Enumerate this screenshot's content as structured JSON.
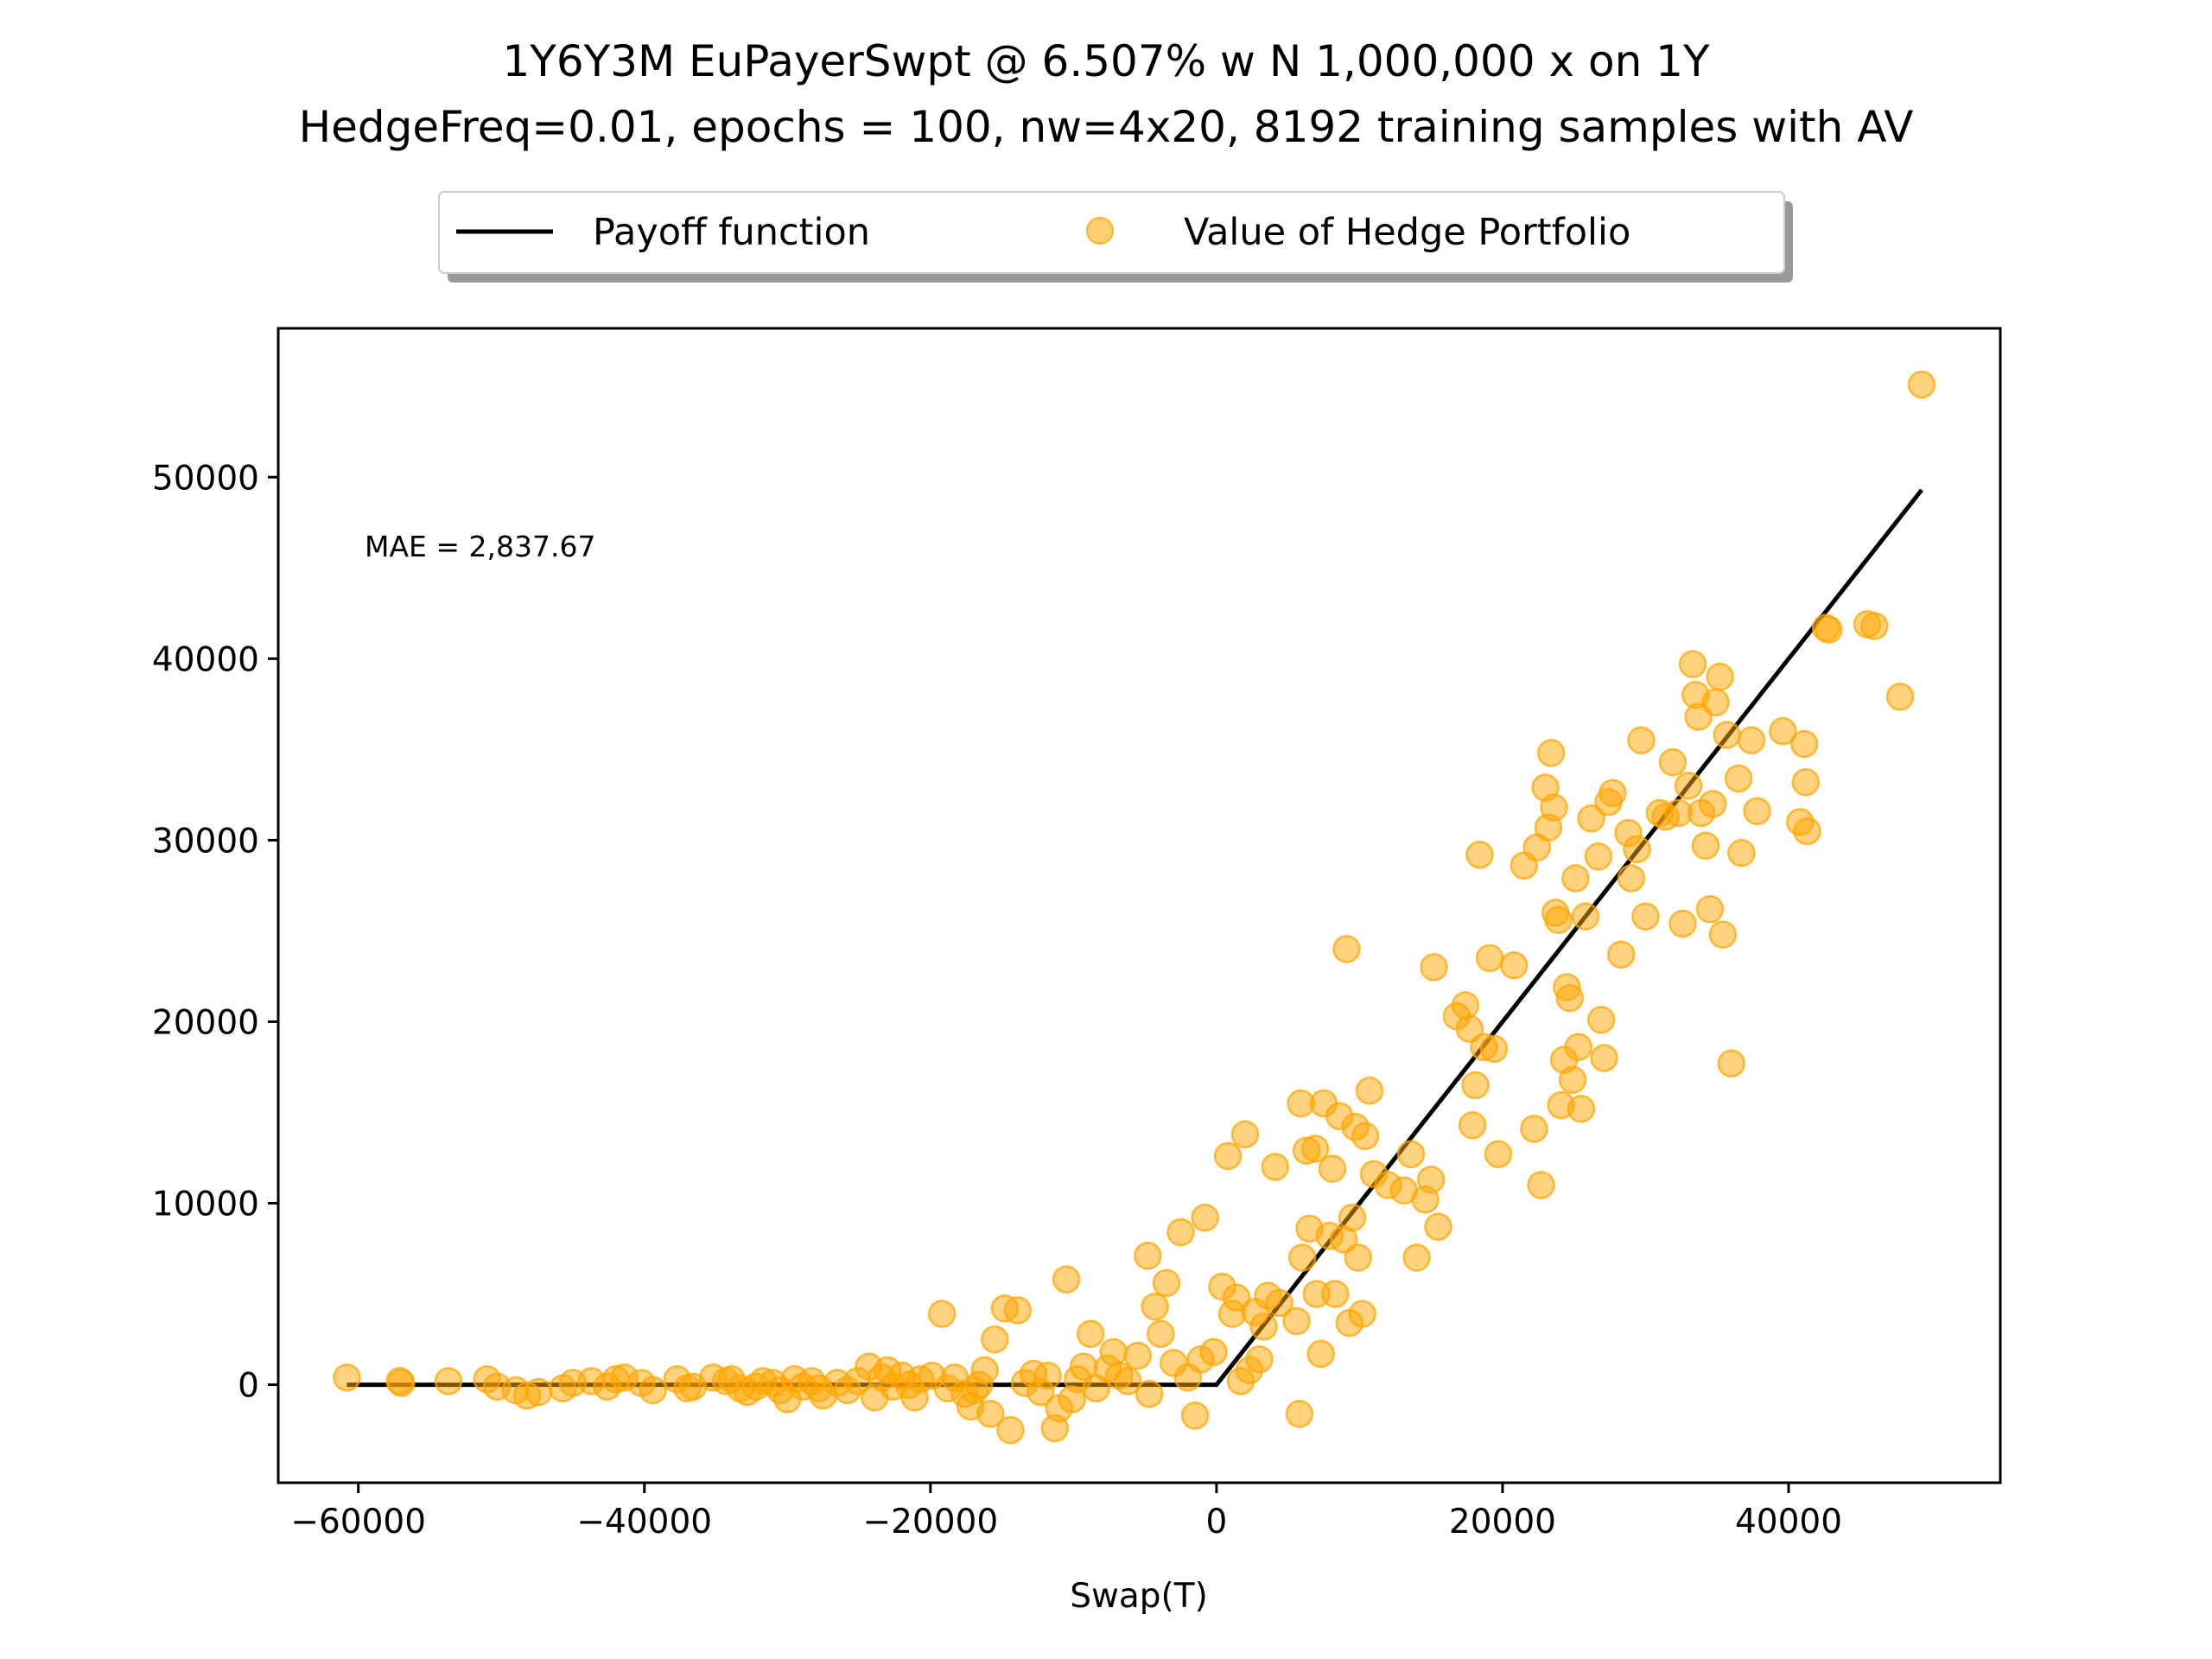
{
  "chart_data": {
    "type": "scatter",
    "title": "1Y6Y3M EuPayerSwpt @ 6.507% w N 1,000,000 x on 1Y",
    "subtitle": "HedgeFreq=0.01, epochs = 100, nw=4x20, 8192 training samples with AV",
    "xlabel": "Swap(T)",
    "ylabel": "",
    "xlim": [
      -65600,
      54800
    ],
    "ylim": [
      -5400,
      58200
    ],
    "xticks": [
      -60000,
      -40000,
      -20000,
      0,
      20000,
      40000
    ],
    "yticks": [
      0,
      10000,
      20000,
      30000,
      40000,
      50000
    ],
    "xtick_labels": [
      "−60000",
      "−40000",
      "−20000",
      "0",
      "20000",
      "40000"
    ],
    "ytick_labels": [
      "0",
      "10000",
      "20000",
      "30000",
      "40000",
      "50000"
    ],
    "annotation": "MAE = 2,837.67",
    "grid": false,
    "legend_position": "top-center, above plot",
    "legend": [
      "Payoff function",
      "Value of Hedge Portfolio"
    ],
    "series": [
      {
        "name": "Payoff function",
        "kind": "line",
        "color": "#000000",
        "x": [
          -60800,
          0,
          49300
        ],
        "y": [
          0,
          0,
          49300
        ]
      },
      {
        "name": "Value of Hedge Portfolio",
        "kind": "scatter",
        "color": "#ffa500",
        "points": [
          [
            -60800,
            400
          ],
          [
            -57100,
            200
          ],
          [
            -57000,
            100
          ],
          [
            -53700,
            200
          ],
          [
            -51000,
            300
          ],
          [
            -50300,
            -100
          ],
          [
            -49000,
            -300
          ],
          [
            -48200,
            -600
          ],
          [
            -47400,
            -400
          ],
          [
            -45700,
            -200
          ],
          [
            -45000,
            100
          ],
          [
            -43700,
            200
          ],
          [
            -42600,
            -100
          ],
          [
            -42000,
            300
          ],
          [
            -41400,
            400
          ],
          [
            -40200,
            100
          ],
          [
            -39400,
            -300
          ],
          [
            -37700,
            300
          ],
          [
            -37000,
            -200
          ],
          [
            -36600,
            -100
          ],
          [
            -35200,
            400
          ],
          [
            -34300,
            200
          ],
          [
            -33900,
            300
          ],
          [
            -33300,
            -200
          ],
          [
            -32800,
            -400
          ],
          [
            -32200,
            -100
          ],
          [
            -31700,
            200
          ],
          [
            -31000,
            100
          ],
          [
            -30500,
            -300
          ],
          [
            -30000,
            -800
          ],
          [
            -29500,
            300
          ],
          [
            -28900,
            -100
          ],
          [
            -28300,
            200
          ],
          [
            -27800,
            -200
          ],
          [
            -27500,
            -600
          ],
          [
            -26500,
            100
          ],
          [
            -25800,
            -300
          ],
          [
            -25100,
            200
          ],
          [
            -24300,
            1000
          ],
          [
            -23900,
            -700
          ],
          [
            -23400,
            400
          ],
          [
            -23000,
            800
          ],
          [
            -22600,
            -100
          ],
          [
            -22000,
            500
          ],
          [
            -21500,
            0
          ],
          [
            -21100,
            -700
          ],
          [
            -20700,
            300
          ],
          [
            -19900,
            500
          ],
          [
            -19200,
            3900
          ],
          [
            -18800,
            -200
          ],
          [
            -18300,
            400
          ],
          [
            -17600,
            -500
          ],
          [
            -17200,
            -1200
          ],
          [
            -16900,
            -300
          ],
          [
            -16600,
            0
          ],
          [
            -16200,
            800
          ],
          [
            -15800,
            -1600
          ],
          [
            -15500,
            2500
          ],
          [
            -14800,
            4200
          ],
          [
            -14400,
            -2500
          ],
          [
            -13900,
            4100
          ],
          [
            -13400,
            100
          ],
          [
            -12800,
            600
          ],
          [
            -12300,
            -400
          ],
          [
            -11800,
            500
          ],
          [
            -11300,
            -2400
          ],
          [
            -11000,
            -1300
          ],
          [
            -10500,
            5800
          ],
          [
            -10100,
            -800
          ],
          [
            -9700,
            300
          ],
          [
            -9300,
            1000
          ],
          [
            -8800,
            2800
          ],
          [
            -8400,
            -200
          ],
          [
            -7600,
            900
          ],
          [
            -7200,
            1800
          ],
          [
            -6800,
            500
          ],
          [
            -6200,
            200
          ],
          [
            -5500,
            1600
          ],
          [
            -4800,
            7100
          ],
          [
            -4700,
            -500
          ],
          [
            -4300,
            4300
          ],
          [
            -3900,
            2800
          ],
          [
            -3500,
            5600
          ],
          [
            -3000,
            1200
          ],
          [
            -2500,
            8400
          ],
          [
            -2000,
            400
          ],
          [
            -1500,
            -1700
          ],
          [
            -1100,
            1400
          ],
          [
            -800,
            9200
          ],
          [
            -200,
            1800
          ],
          [
            400,
            5400
          ],
          [
            800,
            12600
          ],
          [
            1100,
            3900
          ],
          [
            1400,
            4800
          ],
          [
            1700,
            200
          ],
          [
            2000,
            13800
          ],
          [
            2300,
            800
          ],
          [
            2700,
            4000
          ],
          [
            3000,
            1400
          ],
          [
            3300,
            3200
          ],
          [
            3600,
            4900
          ],
          [
            4100,
            12000
          ],
          [
            4400,
            4500
          ],
          [
            5600,
            3500
          ],
          [
            5800,
            -1600
          ],
          [
            5900,
            15500
          ],
          [
            6000,
            7000
          ],
          [
            6300,
            12900
          ],
          [
            6500,
            8600
          ],
          [
            6900,
            13000
          ],
          [
            7000,
            5000
          ],
          [
            7300,
            1700
          ],
          [
            7500,
            15500
          ],
          [
            7900,
            8200
          ],
          [
            8100,
            11900
          ],
          [
            8300,
            5000
          ],
          [
            8600,
            14800
          ],
          [
            8900,
            8000
          ],
          [
            9100,
            24000
          ],
          [
            9300,
            3400
          ],
          [
            9500,
            9200
          ],
          [
            9700,
            14200
          ],
          [
            9900,
            7000
          ],
          [
            10200,
            3900
          ],
          [
            10400,
            13700
          ],
          [
            10700,
            16200
          ],
          [
            11000,
            11600
          ],
          [
            12000,
            11000
          ],
          [
            13100,
            10700
          ],
          [
            13600,
            12700
          ],
          [
            14000,
            7000
          ],
          [
            14600,
            10200
          ],
          [
            15000,
            11300
          ],
          [
            15200,
            23000
          ],
          [
            15500,
            8700
          ],
          [
            16800,
            20300
          ],
          [
            17400,
            20900
          ],
          [
            17700,
            19600
          ],
          [
            17900,
            14300
          ],
          [
            18100,
            16500
          ],
          [
            18400,
            29200
          ],
          [
            18700,
            18600
          ],
          [
            19100,
            23500
          ],
          [
            19400,
            18500
          ],
          [
            19700,
            12700
          ],
          [
            20800,
            23100
          ],
          [
            21500,
            28600
          ],
          [
            22200,
            14100
          ],
          [
            22400,
            29600
          ],
          [
            22700,
            11000
          ],
          [
            23000,
            32900
          ],
          [
            23200,
            30700
          ],
          [
            23400,
            34800
          ],
          [
            23600,
            31800
          ],
          [
            23700,
            26000
          ],
          [
            23900,
            25600
          ],
          [
            24100,
            15400
          ],
          [
            24300,
            17900
          ],
          [
            24500,
            21900
          ],
          [
            24700,
            21300
          ],
          [
            24900,
            16800
          ],
          [
            25100,
            27900
          ],
          [
            25300,
            18600
          ],
          [
            25500,
            15200
          ],
          [
            25800,
            25800
          ],
          [
            26200,
            31200
          ],
          [
            26700,
            29100
          ],
          [
            26900,
            20100
          ],
          [
            27100,
            18000
          ],
          [
            27400,
            32100
          ],
          [
            27700,
            32600
          ],
          [
            28300,
            23700
          ],
          [
            28800,
            30400
          ],
          [
            29000,
            27900
          ],
          [
            29400,
            29500
          ],
          [
            29700,
            35500
          ],
          [
            30000,
            25800
          ],
          [
            31000,
            31500
          ],
          [
            31400,
            31300
          ],
          [
            31900,
            34300
          ],
          [
            32300,
            31500
          ],
          [
            32600,
            25400
          ],
          [
            33000,
            33000
          ],
          [
            33300,
            39700
          ],
          [
            33500,
            38000
          ],
          [
            33700,
            36800
          ],
          [
            33900,
            31500
          ],
          [
            34200,
            29700
          ],
          [
            34500,
            26200
          ],
          [
            34700,
            32000
          ],
          [
            34900,
            37600
          ],
          [
            35200,
            39000
          ],
          [
            35400,
            24800
          ],
          [
            35700,
            35800
          ],
          [
            36000,
            17700
          ],
          [
            36500,
            33400
          ],
          [
            36700,
            29300
          ],
          [
            37400,
            35500
          ],
          [
            37800,
            31600
          ],
          [
            39600,
            36000
          ],
          [
            40800,
            31000
          ],
          [
            41100,
            35300
          ],
          [
            41200,
            33200
          ],
          [
            41300,
            30500
          ],
          [
            42600,
            41700
          ],
          [
            42800,
            41600
          ],
          [
            45500,
            41900
          ],
          [
            46000,
            41800
          ],
          [
            47800,
            37900
          ],
          [
            49300,
            55100
          ]
        ]
      }
    ]
  }
}
